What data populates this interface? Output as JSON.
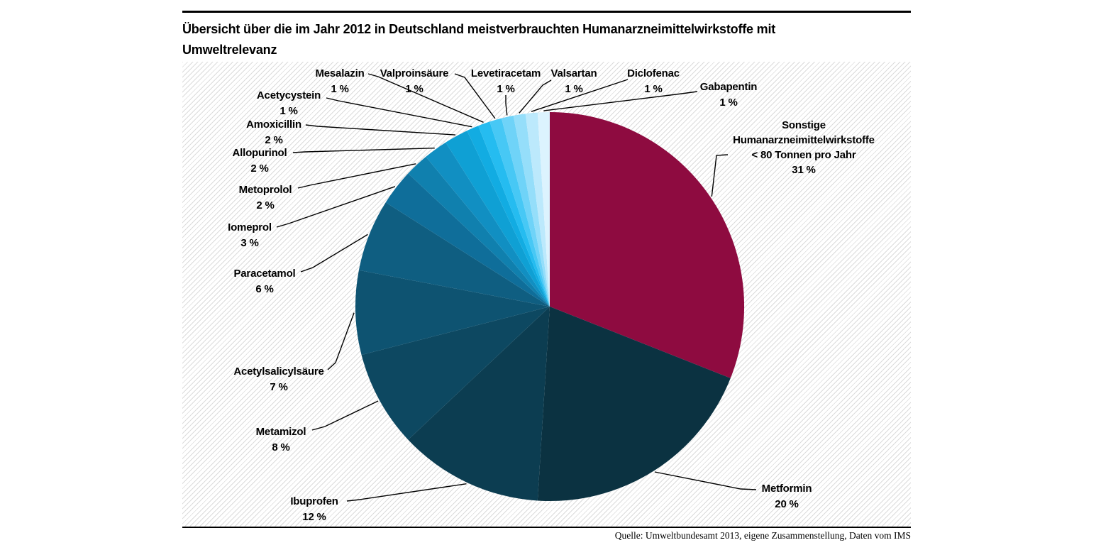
{
  "title": "Übersicht über die im Jahr 2012 in Deutschland meistverbrauchten Humanarzneimittelwirkstoffe mit Umweltrelevanz",
  "title_lines": [
    "Übersicht über die im Jahr 2012 in Deutschland meistverbrauchten Humanarzneimittelwirkstoffe mit",
    "Umweltrelevanz"
  ],
  "source": "Quelle: Umweltbundesamt 2013, eigene Zusammenstellung, Daten vom IMS",
  "chart_data": {
    "type": "pie",
    "title": "Übersicht über die im Jahr 2012 in Deutschland meistverbrauchten Humanarzneimittelwirkstoffe mit Umweltrelevanz",
    "source": "Quelle: Umweltbundesamt 2013, eigene Zusammenstellung, Daten vom IMS",
    "unit": "percent",
    "total": 100,
    "start_angle_deg": 0,
    "direction": "clockwise",
    "legend_position": "none",
    "background_pattern": "diagonal-hatch",
    "slices": [
      {
        "name": "Sonstige Humanarzneimittelwirkstoffe < 80 Tonnen pro Jahr",
        "label_lines": [
          "Sonstige",
          "Humanarzneimittelwirkstoffe",
          "< 80 Tonnen pro Jahr"
        ],
        "pct": 31,
        "pct_label": "31 %",
        "color": "#8E0B40"
      },
      {
        "name": "Metformin",
        "label_lines": [
          "Metformin"
        ],
        "pct": 20,
        "pct_label": "20 %",
        "color": "#0B3241"
      },
      {
        "name": "Ibuprofen",
        "label_lines": [
          "Ibuprofen"
        ],
        "pct": 12,
        "pct_label": "12 %",
        "color": "#0C3D51"
      },
      {
        "name": "Metamizol",
        "label_lines": [
          "Metamizol"
        ],
        "pct": 8,
        "pct_label": "8 %",
        "color": "#0D4861"
      },
      {
        "name": "Acetylsalicylsäure",
        "label_lines": [
          "Acetylsalicylsäure"
        ],
        "pct": 7,
        "pct_label": "7 %",
        "color": "#0E5371"
      },
      {
        "name": "Paracetamol",
        "label_lines": [
          "Paracetamol"
        ],
        "pct": 6,
        "pct_label": "6 %",
        "color": "#0F5E81"
      },
      {
        "name": "Iomeprol",
        "label_lines": [
          "Iomeprol"
        ],
        "pct": 3,
        "pct_label": "3 %",
        "color": "#0F6E9A"
      },
      {
        "name": "Metoprolol",
        "label_lines": [
          "Metoprolol"
        ],
        "pct": 2,
        "pct_label": "2 %",
        "color": "#1080AE"
      },
      {
        "name": "Allopurinol",
        "label_lines": [
          "Allopurinol"
        ],
        "pct": 2,
        "pct_label": "2 %",
        "color": "#118FC2"
      },
      {
        "name": "Amoxicillin",
        "label_lines": [
          "Amoxicillin"
        ],
        "pct": 2,
        "pct_label": "2 %",
        "color": "#0FA0D4"
      },
      {
        "name": "Acetycystein",
        "label_lines": [
          "Acetycystein"
        ],
        "pct": 1,
        "pct_label": "1 %",
        "color": "#12ACE2"
      },
      {
        "name": "Mesalazin",
        "label_lines": [
          "Mesalazin"
        ],
        "pct": 1,
        "pct_label": "1 %",
        "color": "#25BCF0"
      },
      {
        "name": "Valproinsäure",
        "label_lines": [
          "Valproinsäure"
        ],
        "pct": 1,
        "pct_label": "1 %",
        "color": "#47C8F5"
      },
      {
        "name": "Levetiracetam",
        "label_lines": [
          "Levetiracetam"
        ],
        "pct": 1,
        "pct_label": "1 %",
        "color": "#6FD3F8"
      },
      {
        "name": "Valsartan",
        "label_lines": [
          "Valsartan"
        ],
        "pct": 1,
        "pct_label": "1 %",
        "color": "#95DEFA"
      },
      {
        "name": "Diclofenac",
        "label_lines": [
          "Diclofenac"
        ],
        "pct": 1,
        "pct_label": "1 %",
        "color": "#BCE9FC"
      },
      {
        "name": "Gabapentin",
        "label_lines": [
          "Gabapentin"
        ],
        "pct": 1,
        "pct_label": "1 %",
        "color": "#DCF3FE"
      }
    ]
  }
}
